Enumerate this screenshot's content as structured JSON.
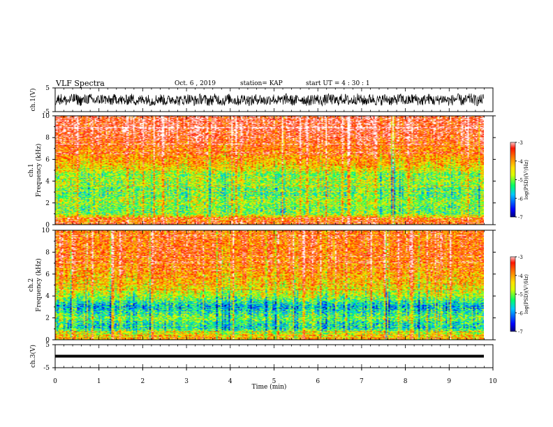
{
  "header": {
    "title": "VLF Spectra",
    "date": "Oct. 6  , 2019",
    "station": "station= KAP",
    "start": "start  UT  =   4 : 30 : 1"
  },
  "chart_data": [
    {
      "type": "line",
      "panel": "waveform",
      "ylabel": "ch.1(V)",
      "ylim": [
        -5,
        5
      ],
      "yticks": [
        "5",
        "-5"
      ],
      "xlim": [
        0,
        10
      ],
      "series": [
        {
          "description_values": "noisy waveform, amplitude about +/-2.5 V around 0"
        }
      ],
      "color": "#000000"
    },
    {
      "type": "heatmap",
      "panel": "spectrogram",
      "ylabel_line1": "ch.1",
      "ylabel_line2": "Frequency  (kHz)",
      "ylim": [
        0,
        10
      ],
      "yticks": [
        "0",
        "2",
        "4",
        "6",
        "8",
        "10"
      ],
      "xlim": [
        0,
        9.8
      ],
      "intensity_profile_by_khz": [
        [
          0,
          -3.6
        ],
        [
          0.6,
          -4.0
        ],
        [
          1.0,
          -5.0
        ],
        [
          1.5,
          -5.1
        ],
        [
          2.0,
          -4.8
        ],
        [
          2.5,
          -5.0
        ],
        [
          3.0,
          -5.2
        ],
        [
          3.5,
          -5.0
        ],
        [
          4.0,
          -4.8
        ],
        [
          4.6,
          -5.0
        ],
        [
          5.0,
          -4.5
        ],
        [
          6.0,
          -4.0
        ],
        [
          7.0,
          -3.7
        ],
        [
          8.0,
          -3.3
        ],
        [
          9.0,
          -3.2
        ],
        [
          10.0,
          -3.2
        ]
      ],
      "colorbar": {
        "label": "log(PSD)(V²/Hz)",
        "range": [
          -7,
          -3
        ],
        "ticks": [
          "-3",
          "-4",
          "-5",
          "-6",
          "-7"
        ]
      }
    },
    {
      "type": "heatmap",
      "panel": "spectrogram",
      "ylabel_line1": "ch.2",
      "ylabel_line2": "Frequency  (kHz)",
      "ylim": [
        0,
        10
      ],
      "yticks": [
        "0",
        "2",
        "4",
        "6",
        "8",
        "10"
      ],
      "xlim": [
        0,
        9.8
      ],
      "intensity_profile_by_khz": [
        [
          0,
          -4.2
        ],
        [
          0.6,
          -4.6
        ],
        [
          1.0,
          -5.5
        ],
        [
          1.5,
          -5.4
        ],
        [
          2.0,
          -5.0
        ],
        [
          2.5,
          -5.4
        ],
        [
          3.0,
          -5.8
        ],
        [
          3.5,
          -5.3
        ],
        [
          4.0,
          -4.8
        ],
        [
          5.0,
          -4.3
        ],
        [
          6.0,
          -4.0
        ],
        [
          7.0,
          -3.8
        ],
        [
          8.0,
          -3.6
        ],
        [
          9.0,
          -3.6
        ],
        [
          10.0,
          -3.7
        ]
      ],
      "colorbar": {
        "label": "log(PSD)(V²/Hz)",
        "range": [
          -7,
          -3
        ],
        "ticks": [
          "-3",
          "-4",
          "-5",
          "-6",
          "-7"
        ]
      }
    },
    {
      "type": "line",
      "panel": "waveform",
      "ylabel": "ch.3(V)",
      "ylim": [
        -5,
        5
      ],
      "yticks": [
        "5",
        "-5"
      ],
      "xlim": [
        0,
        10
      ],
      "series": [
        {
          "constant_value": 0
        }
      ],
      "color": "#000000"
    }
  ],
  "xaxis": {
    "label": "Time  (min)",
    "ticks": [
      "0",
      "1",
      "2",
      "3",
      "4",
      "5",
      "6",
      "7",
      "8",
      "9",
      "10"
    ]
  },
  "colors": {
    "scale": [
      "#000080",
      "#0000ff",
      "#00c8ff",
      "#00ff66",
      "#d8ff00",
      "#ffe000",
      "#ff7800",
      "#ff1400",
      "#ffc0c0",
      "#ffffff"
    ]
  }
}
